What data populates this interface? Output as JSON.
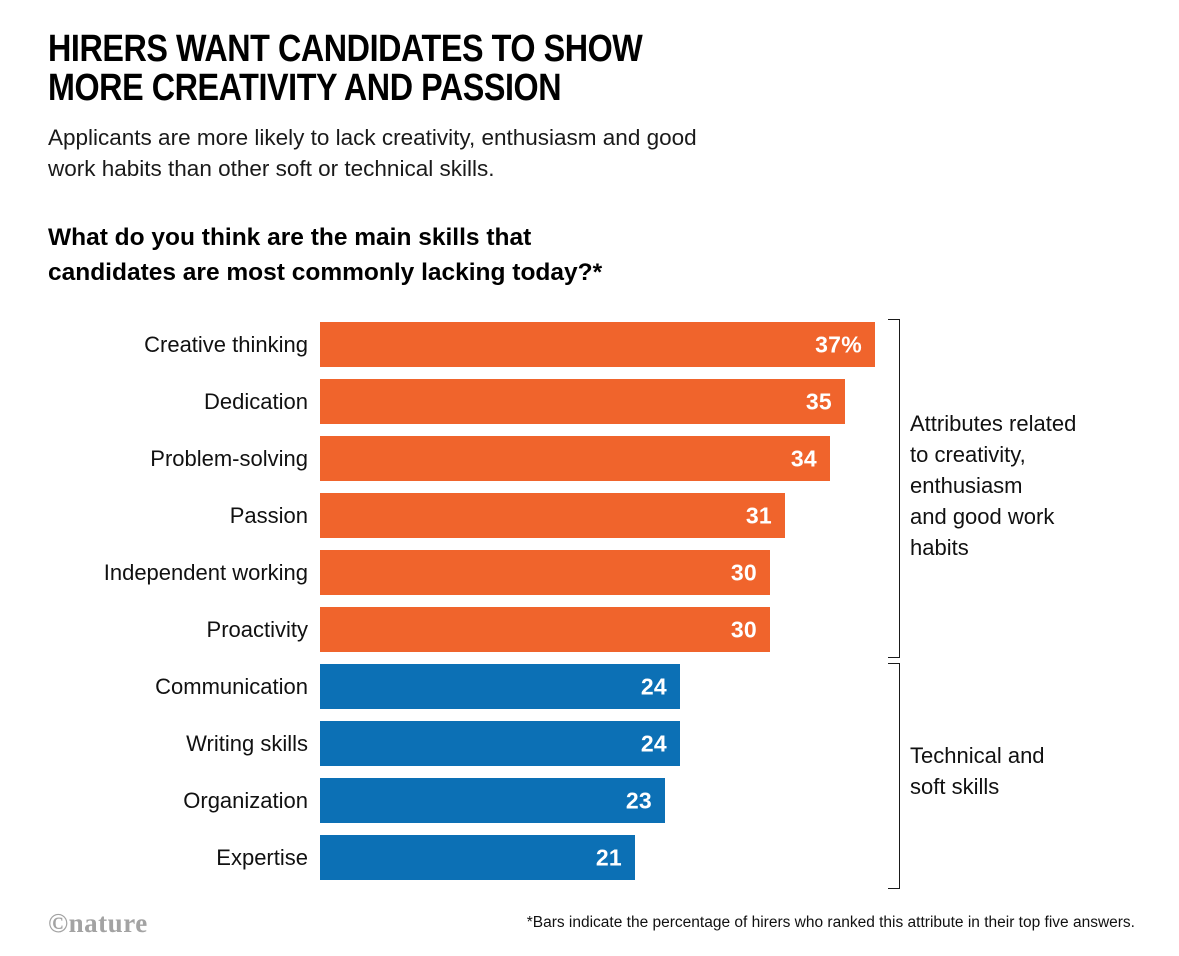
{
  "header": {
    "title_lines": [
      "HIRERS WANT CANDIDATES TO SHOW",
      "MORE CREATIVITY AND PASSION"
    ],
    "subtitle": "Applicants are more likely to lack creativity, enthusiasm and good work habits than other soft or technical skills.",
    "question": "What do you think are the main skills that candidates are most commonly lacking today?*"
  },
  "chart_data": {
    "type": "bar",
    "orientation": "horizontal",
    "title": "What do you think are the main skills that candidates are most commonly lacking today?*",
    "categories": [
      "Creative thinking",
      "Dedication",
      "Problem-solving",
      "Passion",
      "Independent working",
      "Proactivity",
      "Communication",
      "Writing skills",
      "Organization",
      "Expertise"
    ],
    "values": [
      37,
      35,
      34,
      31,
      30,
      30,
      24,
      24,
      23,
      21
    ],
    "value_labels": [
      "37%",
      "35",
      "34",
      "31",
      "30",
      "30",
      "24",
      "24",
      "23",
      "21"
    ],
    "xlim": [
      0,
      37
    ],
    "grid": false,
    "legend": "none",
    "group_split_index": 6,
    "colors": {
      "creativity_group": "#F0642C",
      "technical_group": "#0C70B5"
    },
    "annotations": [
      {
        "text": "Attributes related\nto creativity,\nenthusiasm\nand good work\nhabits",
        "group": "creativity"
      },
      {
        "text": "Technical and\nsoft skills",
        "group": "technical"
      }
    ]
  },
  "footer": {
    "logo_text": "©nature",
    "footnote": "*Bars indicate the percentage of hirers who ranked this attribute in their top five answers."
  }
}
